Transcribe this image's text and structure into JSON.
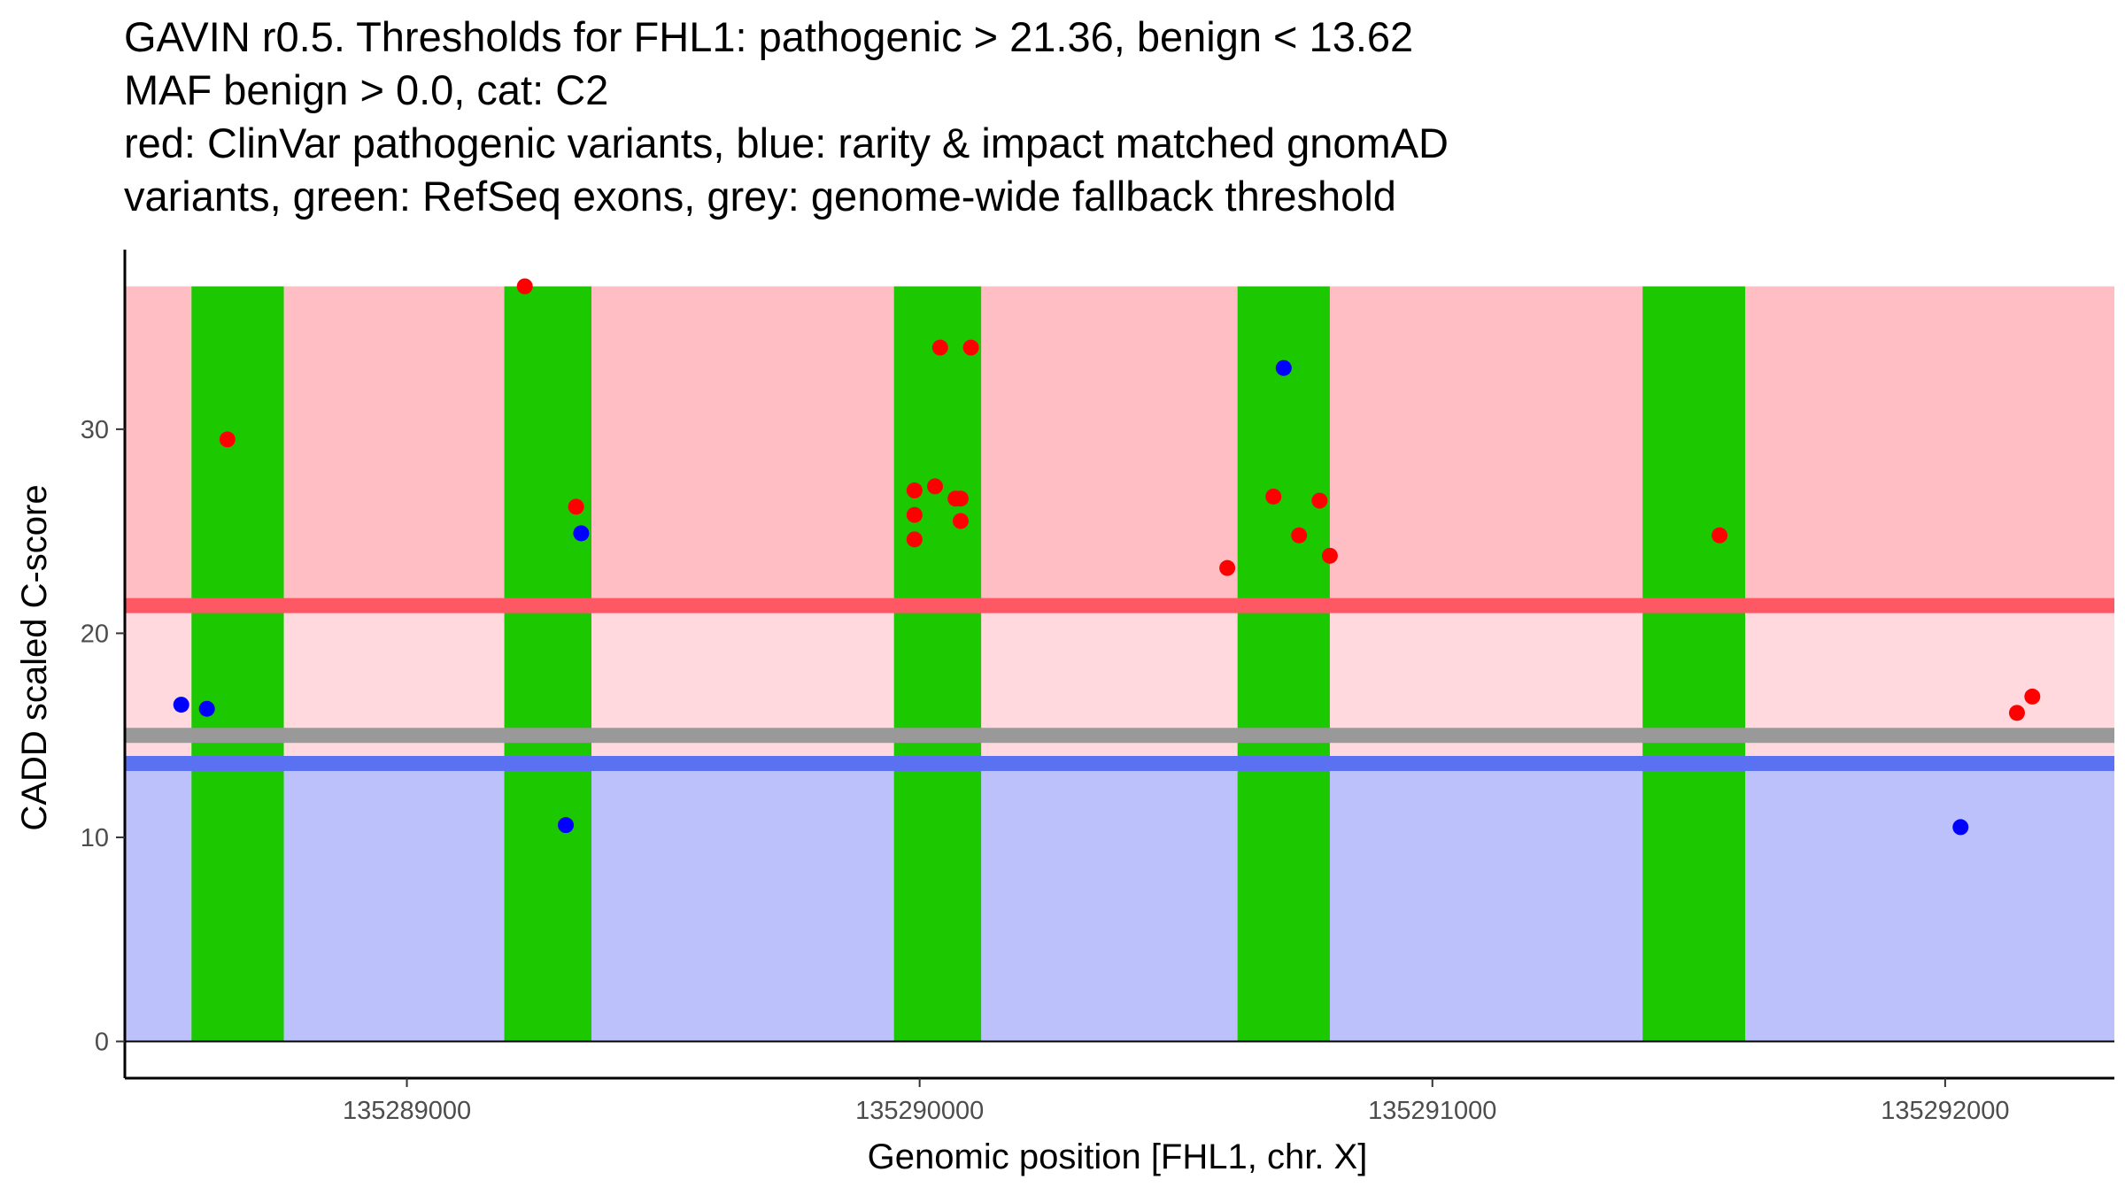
{
  "chart_data": {
    "type": "scatter",
    "title_lines": [
      "GAVIN r0.5. Thresholds for FHL1: pathogenic > 21.36, benign < 13.62",
      "MAF benign > 0.0, cat: C2",
      "red: ClinVar pathogenic variants, blue: rarity & impact matched gnomAD",
      "variants, green: RefSeq exons, grey: genome-wide fallback threshold"
    ],
    "xlabel": "Genomic position [FHL1, chr. X]",
    "ylabel": "CADD scaled C-score",
    "xlim": [
      135288450,
      135292330
    ],
    "ylim": [
      -1.8,
      38.8
    ],
    "x_ticks": [
      135289000,
      135290000,
      135291000,
      135292000
    ],
    "x_tick_labels": [
      "135289000",
      "135290000",
      "135291000",
      "135292000"
    ],
    "y_ticks": [
      0,
      10,
      20,
      30
    ],
    "y_tick_labels": [
      "0",
      "10",
      "20",
      "30"
    ],
    "thresholds": {
      "pathogenic": 21.36,
      "benign": 13.62,
      "genome_wide": 15.0
    },
    "regions": {
      "x_range": [
        135288450,
        135292330
      ],
      "benign_band": [
        0,
        13.62
      ],
      "between_band": [
        13.62,
        21.36
      ],
      "pathogenic_band": [
        21.36,
        37.0
      ]
    },
    "exons": [
      [
        135288580,
        135288760
      ],
      [
        135289190,
        135289360
      ],
      [
        135289950,
        135290120
      ],
      [
        135290620,
        135290800
      ],
      [
        135291410,
        135291610
      ]
    ],
    "series": [
      {
        "name": "ClinVar pathogenic variants",
        "color": "#ff0000",
        "points": [
          [
            135288650,
            29.5
          ],
          [
            135289230,
            37.0
          ],
          [
            135289330,
            26.2
          ],
          [
            135289990,
            27.0
          ],
          [
            135290030,
            27.2
          ],
          [
            135290070,
            26.6
          ],
          [
            135290080,
            26.6
          ],
          [
            135289990,
            25.8
          ],
          [
            135290080,
            25.5
          ],
          [
            135289990,
            24.6
          ],
          [
            135290040,
            34.0
          ],
          [
            135290100,
            34.0
          ],
          [
            135290600,
            23.2
          ],
          [
            135290690,
            26.7
          ],
          [
            135290740,
            24.8
          ],
          [
            135290780,
            26.5
          ],
          [
            135290800,
            23.8
          ],
          [
            135291560,
            24.8
          ],
          [
            135292140,
            16.1
          ],
          [
            135292170,
            16.9
          ]
        ]
      },
      {
        "name": "rarity & impact matched gnomAD variants",
        "color": "#0000ff",
        "points": [
          [
            135288560,
            16.5
          ],
          [
            135288610,
            16.3
          ],
          [
            135289340,
            24.9
          ],
          [
            135289310,
            10.6
          ],
          [
            135290710,
            33.0
          ],
          [
            135292030,
            10.5
          ]
        ]
      }
    ]
  },
  "colors": {
    "benign_fill": "#bcc1fb",
    "between_fill": "#ffd9dd",
    "pathogenic_fill": "#ffbec3",
    "pathogenic_line": "#ff5865",
    "benign_line": "#5a72f2",
    "fallback_line": "#999999",
    "exon": "#1cc800"
  }
}
